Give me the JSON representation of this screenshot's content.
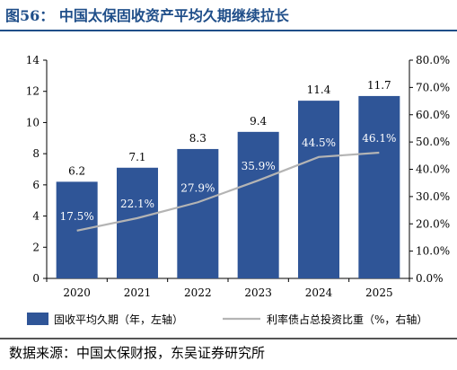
{
  "figure_title": "图56：  中国太保固收资产平均久期继续拉长",
  "source_text": "数据来源：中国太保财报，东吴证券研究所",
  "colors": {
    "bar": "#2f5597",
    "line": "#b4b4b4",
    "title": "#1f4e89"
  },
  "chart_data": {
    "type": "bar",
    "categories": [
      "2020",
      "2021",
      "2022",
      "2023",
      "2024",
      "2025"
    ],
    "series": [
      {
        "name": "固收平均久期（年，左轴）",
        "type": "bar",
        "axis": "left",
        "values": [
          6.2,
          7.1,
          8.3,
          9.4,
          11.4,
          11.7
        ],
        "labels": [
          "6.2",
          "7.1",
          "8.3",
          "9.4",
          "11.4",
          "11.7"
        ]
      },
      {
        "name": "利率债占总投资比重（%，右轴）",
        "type": "line",
        "axis": "right",
        "values": [
          17.5,
          22.1,
          27.9,
          35.9,
          44.5,
          46.1
        ],
        "labels": [
          "17.5%",
          "22.1%",
          "27.9%",
          "35.9%",
          "44.5%",
          "46.1%"
        ]
      }
    ],
    "y_left": {
      "ylim": [
        0,
        14
      ],
      "ticks": [
        "0",
        "2",
        "4",
        "6",
        "8",
        "10",
        "12",
        "14"
      ]
    },
    "y_right": {
      "ylim": [
        0,
        80
      ],
      "ticks": [
        "0.0%",
        "10.0%",
        "20.0%",
        "30.0%",
        "40.0%",
        "50.0%",
        "60.0%",
        "70.0%",
        "80.0%"
      ]
    },
    "legend_position": "bottom",
    "grid": false
  }
}
